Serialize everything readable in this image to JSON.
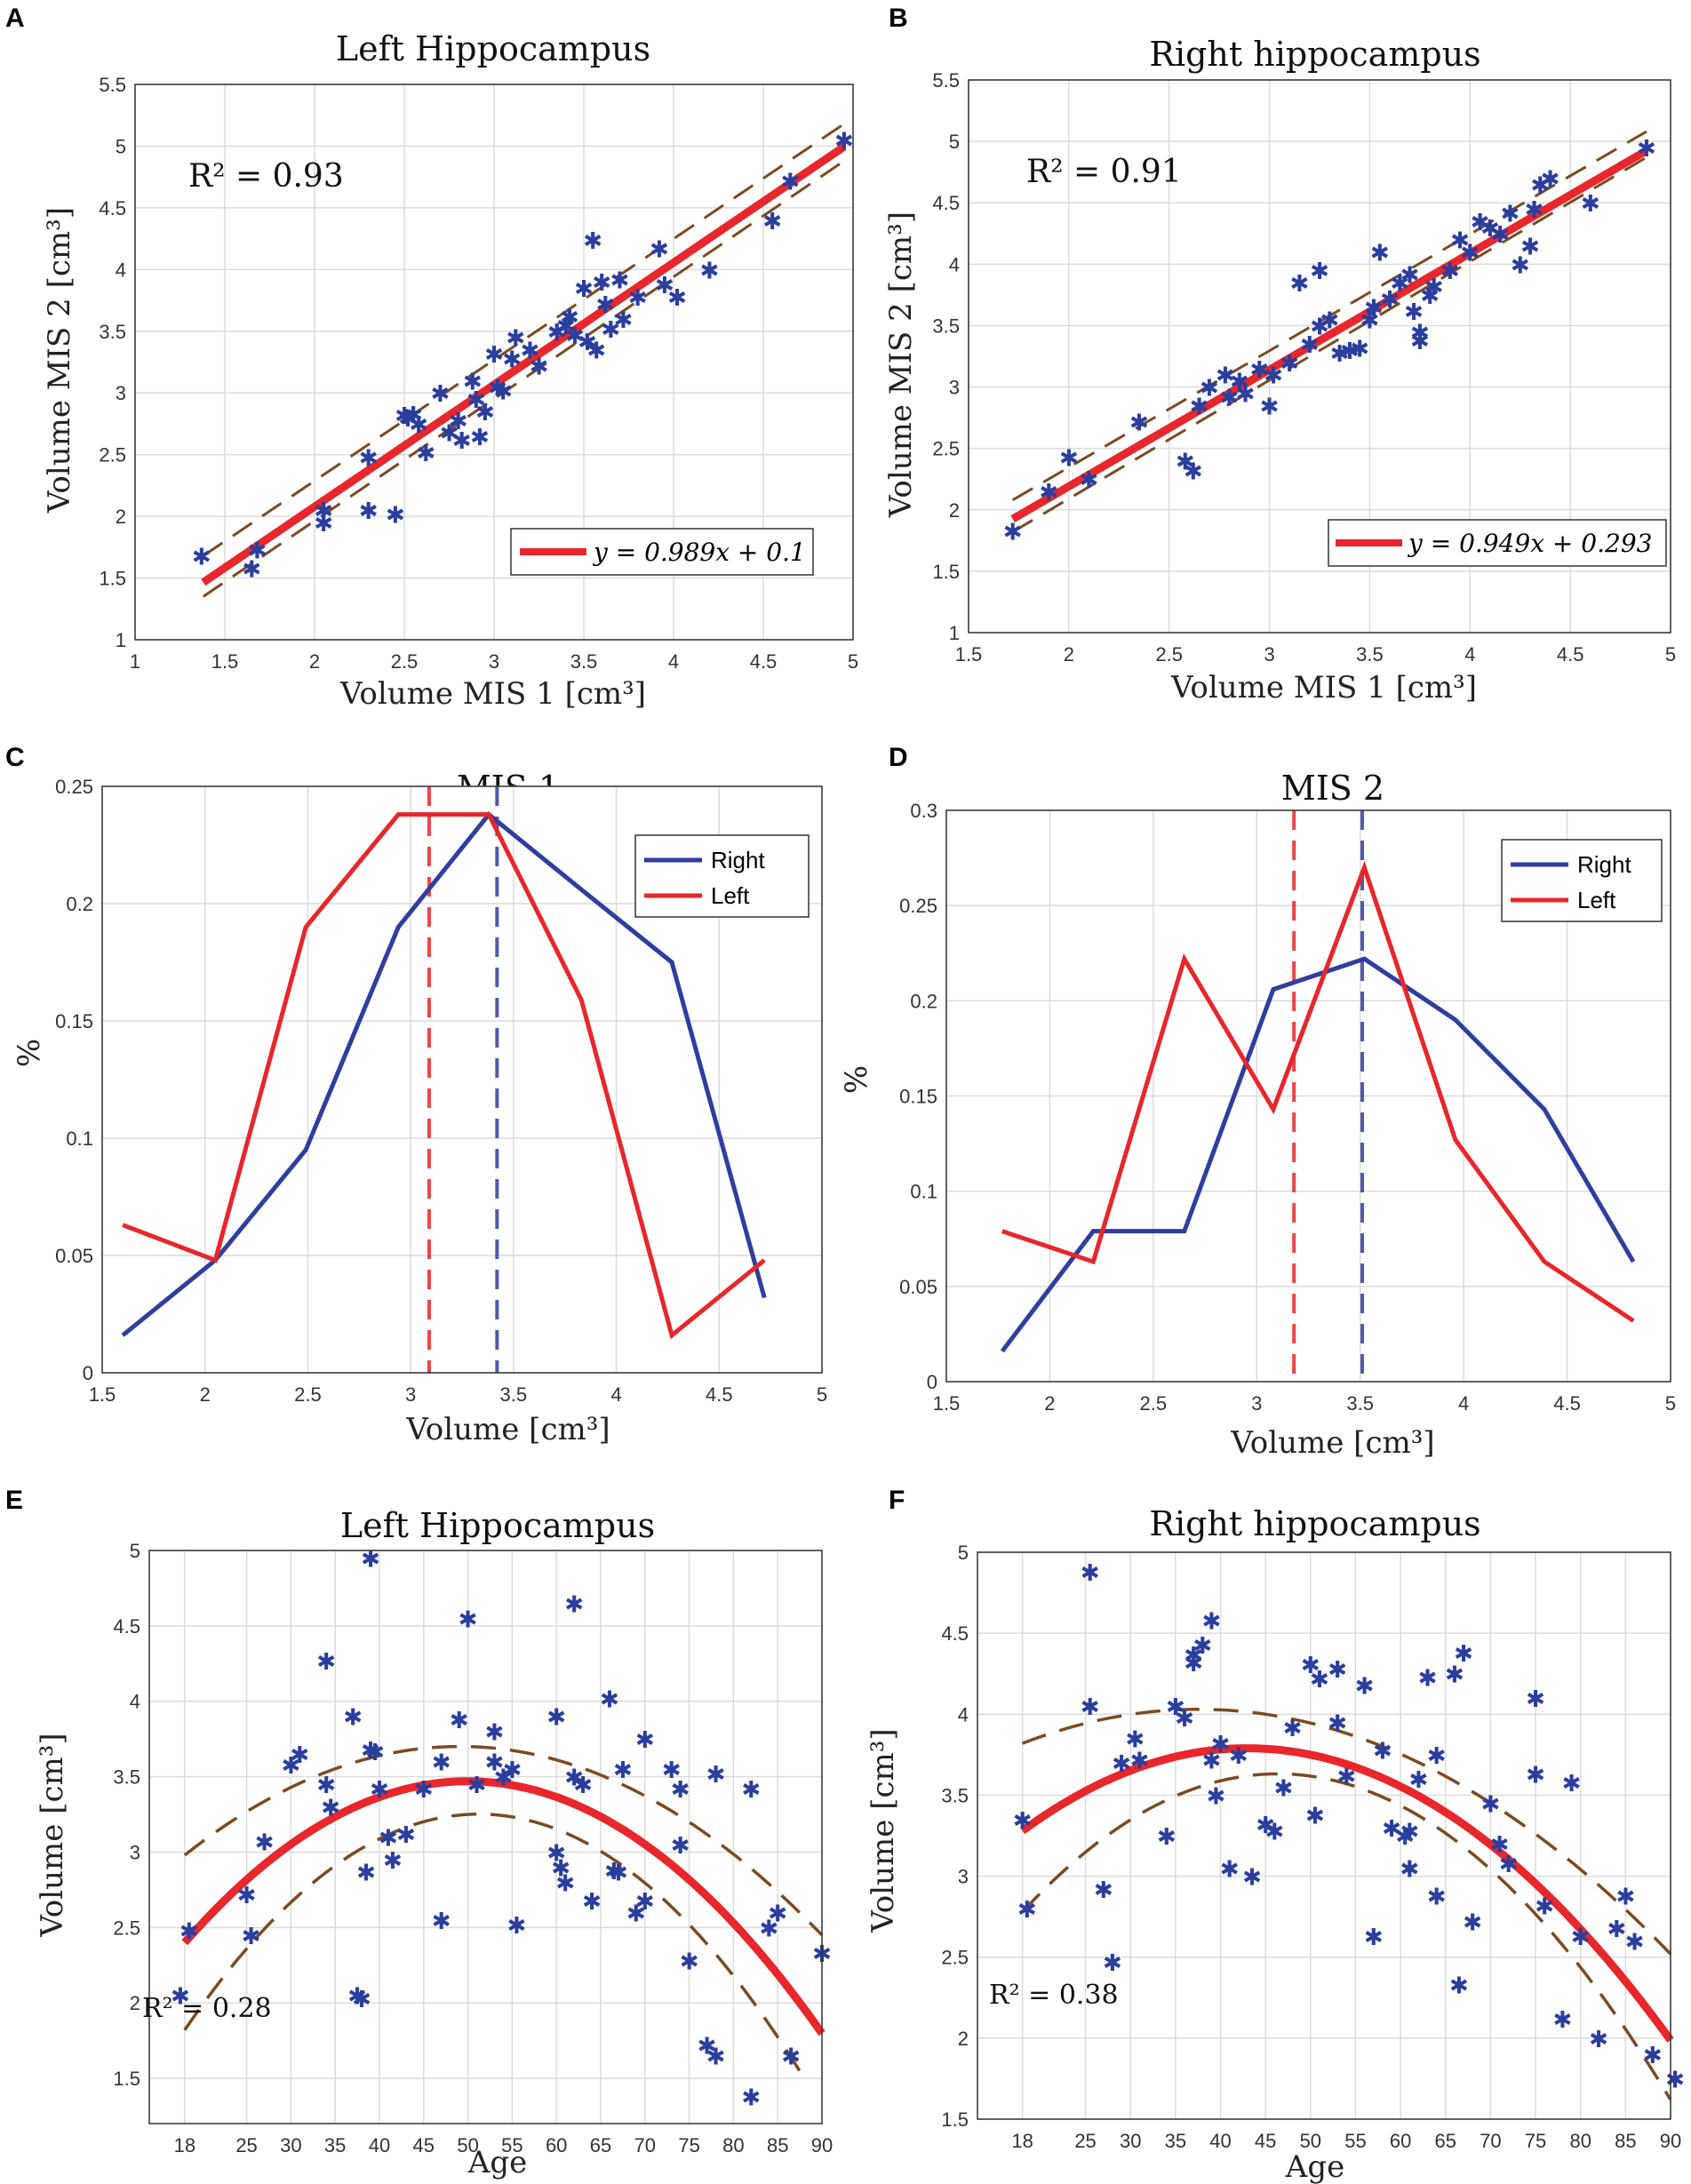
{
  "colors": {
    "right": "#2f3e9e",
    "left": "#e8262b",
    "brown": "#7b4a22",
    "marker": "#2a3e9e"
  },
  "chart_data": [
    {
      "panel": "A",
      "type": "scatter",
      "title": "Left Hippocampus",
      "xlabel": "Volume MIS 1 [cm³]",
      "ylabel": "Volume MIS 2 [cm³]",
      "xlim": [
        1,
        5
      ],
      "ylim": [
        1,
        5.5
      ],
      "xticks": [
        "1",
        "1.5",
        "2",
        "2.5",
        "3",
        "3.5",
        "4",
        "4.5",
        "5"
      ],
      "yticks": [
        "1",
        "1.5",
        "2",
        "2.5",
        "3",
        "3.5",
        "4",
        "4.5",
        "5",
        "5.5"
      ],
      "annotation": "R² = 0.93",
      "legend": "y = 0.989x + 0.1",
      "fit": {
        "slope": 0.989,
        "intercept": 0.1,
        "x_range": [
          1.38,
          4.95
        ]
      },
      "ci_band": {
        "lower_x": [
          1.38,
          4.95
        ],
        "lower_y": [
          1.35,
          4.88
        ],
        "upper_x": [
          1.38,
          4.95
        ],
        "upper_y": [
          1.68,
          5.18
        ]
      },
      "points": [
        [
          1.37,
          1.68
        ],
        [
          1.65,
          1.58
        ],
        [
          1.68,
          1.73
        ],
        [
          2.05,
          2.05
        ],
        [
          2.05,
          1.95
        ],
        [
          2.3,
          2.05
        ],
        [
          2.45,
          2.02
        ],
        [
          2.3,
          2.48
        ],
        [
          2.5,
          2.82
        ],
        [
          2.52,
          2.8
        ],
        [
          2.55,
          2.83
        ],
        [
          2.58,
          2.75
        ],
        [
          2.62,
          2.52
        ],
        [
          2.7,
          3.0
        ],
        [
          2.75,
          2.68
        ],
        [
          2.8,
          2.78
        ],
        [
          2.82,
          2.62
        ],
        [
          2.88,
          3.1
        ],
        [
          2.9,
          2.95
        ],
        [
          2.92,
          2.65
        ],
        [
          2.95,
          2.85
        ],
        [
          3.0,
          3.32
        ],
        [
          3.02,
          3.05
        ],
        [
          3.05,
          3.02
        ],
        [
          3.1,
          3.28
        ],
        [
          3.12,
          3.45
        ],
        [
          3.2,
          3.35
        ],
        [
          3.25,
          3.22
        ],
        [
          3.35,
          3.5
        ],
        [
          3.4,
          3.55
        ],
        [
          3.42,
          3.62
        ],
        [
          3.45,
          3.47
        ],
        [
          3.5,
          3.85
        ],
        [
          3.52,
          3.42
        ],
        [
          3.55,
          4.24
        ],
        [
          3.57,
          3.35
        ],
        [
          3.6,
          3.9
        ],
        [
          3.62,
          3.72
        ],
        [
          3.65,
          3.52
        ],
        [
          3.7,
          3.92
        ],
        [
          3.72,
          3.6
        ],
        [
          3.8,
          3.78
        ],
        [
          3.92,
          4.17
        ],
        [
          3.95,
          3.88
        ],
        [
          4.02,
          3.78
        ],
        [
          4.2,
          4.0
        ],
        [
          4.55,
          4.4
        ],
        [
          4.65,
          4.72
        ],
        [
          4.95,
          5.05
        ]
      ]
    },
    {
      "panel": "B",
      "type": "scatter",
      "title": "Right hippocampus",
      "xlabel": "Volume MIS 1 [cm³]",
      "ylabel": "Volume MIS 2 [cm³]",
      "xlim": [
        1.5,
        5
      ],
      "ylim": [
        1,
        5.5
      ],
      "xticks": [
        "1.5",
        "2",
        "2.5",
        "3",
        "3.5",
        "4",
        "4.5",
        "5"
      ],
      "yticks": [
        "1",
        "1.5",
        "2",
        "2.5",
        "3",
        "3.5",
        "4",
        "4.5",
        "5",
        "5.5"
      ],
      "annotation": "R² = 0.91",
      "legend": "y = 0.949x + 0.293",
      "fit": {
        "slope": 0.949,
        "intercept": 0.293,
        "x_range": [
          1.72,
          4.88
        ]
      },
      "ci_band": {
        "lower_x": [
          1.72,
          4.88
        ],
        "lower_y": [
          1.82,
          4.87
        ],
        "upper_x": [
          1.72,
          4.88
        ],
        "upper_y": [
          2.08,
          5.08
        ]
      },
      "points": [
        [
          1.72,
          1.83
        ],
        [
          1.9,
          2.15
        ],
        [
          2.0,
          2.43
        ],
        [
          2.1,
          2.25
        ],
        [
          2.35,
          2.72
        ],
        [
          2.58,
          2.4
        ],
        [
          2.62,
          2.32
        ],
        [
          2.65,
          2.85
        ],
        [
          2.7,
          3.0
        ],
        [
          2.78,
          3.1
        ],
        [
          2.8,
          2.92
        ],
        [
          2.85,
          3.05
        ],
        [
          2.88,
          2.95
        ],
        [
          2.95,
          3.15
        ],
        [
          3.0,
          2.85
        ],
        [
          3.02,
          3.1
        ],
        [
          3.1,
          3.2
        ],
        [
          3.15,
          3.85
        ],
        [
          3.2,
          3.35
        ],
        [
          3.25,
          3.5
        ],
        [
          3.25,
          3.95
        ],
        [
          3.3,
          3.55
        ],
        [
          3.35,
          3.28
        ],
        [
          3.4,
          3.3
        ],
        [
          3.45,
          3.32
        ],
        [
          3.5,
          3.55
        ],
        [
          3.52,
          3.65
        ],
        [
          3.55,
          4.1
        ],
        [
          3.6,
          3.72
        ],
        [
          3.65,
          3.85
        ],
        [
          3.7,
          3.92
        ],
        [
          3.72,
          3.62
        ],
        [
          3.75,
          3.45
        ],
        [
          3.75,
          3.38
        ],
        [
          3.8,
          3.75
        ],
        [
          3.82,
          3.82
        ],
        [
          3.9,
          3.95
        ],
        [
          3.95,
          4.2
        ],
        [
          4.0,
          4.1
        ],
        [
          4.05,
          4.35
        ],
        [
          4.1,
          4.3
        ],
        [
          4.15,
          4.25
        ],
        [
          4.2,
          4.42
        ],
        [
          4.25,
          4.0
        ],
        [
          4.3,
          4.15
        ],
        [
          4.32,
          4.45
        ],
        [
          4.35,
          4.65
        ],
        [
          4.4,
          4.7
        ],
        [
          4.6,
          4.5
        ],
        [
          4.88,
          4.95
        ]
      ]
    },
    {
      "panel": "C",
      "type": "line",
      "title": "MIS 1",
      "xlabel": "Volume [cm³]",
      "ylabel": "%",
      "xlim": [
        1.5,
        5
      ],
      "ylim": [
        0,
        0.25
      ],
      "xticks": [
        "1.5",
        "2",
        "2.5",
        "3",
        "3.5",
        "4",
        "4.5",
        "5"
      ],
      "yticks": [
        "0",
        "0.05",
        "0.1",
        "0.15",
        "0.2",
        "0.25"
      ],
      "legend": [
        "Right",
        "Left"
      ],
      "series": [
        {
          "name": "Right",
          "x": [
            1.6,
            2.05,
            2.49,
            2.94,
            3.38,
            3.83,
            4.27,
            4.72
          ],
          "values": [
            0.016,
            0.048,
            0.095,
            0.19,
            0.238,
            0.206,
            0.175,
            0.032
          ]
        },
        {
          "name": "Left",
          "x": [
            1.6,
            2.05,
            2.49,
            2.94,
            3.38,
            3.83,
            4.27,
            4.72
          ],
          "values": [
            0.063,
            0.048,
            0.19,
            0.238,
            0.238,
            0.159,
            0.016,
            0.048
          ]
        }
      ],
      "vlines": [
        {
          "name": "Left mean",
          "x": 3.09
        },
        {
          "name": "Right mean",
          "x": 3.42
        }
      ]
    },
    {
      "panel": "D",
      "type": "line",
      "title": "MIS 2",
      "xlabel": "Volume [cm³]",
      "ylabel": "%",
      "xlim": [
        1.5,
        5
      ],
      "ylim": [
        0,
        0.3
      ],
      "xticks": [
        "1.5",
        "2",
        "2.5",
        "3",
        "3.5",
        "4",
        "4.5",
        "5"
      ],
      "yticks": [
        "0",
        "0.05",
        "0.1",
        "0.15",
        "0.2",
        "0.25",
        "0.3"
      ],
      "legend": [
        "Right",
        "Left"
      ],
      "series": [
        {
          "name": "Right",
          "x": [
            1.77,
            2.21,
            2.65,
            3.08,
            3.52,
            3.96,
            4.39,
            4.82
          ],
          "values": [
            0.016,
            0.079,
            0.079,
            0.206,
            0.222,
            0.19,
            0.143,
            0.063
          ]
        },
        {
          "name": "Left",
          "x": [
            1.77,
            2.21,
            2.65,
            3.08,
            3.52,
            3.96,
            4.39,
            4.82
          ],
          "values": [
            0.079,
            0.063,
            0.222,
            0.143,
            0.27,
            0.127,
            0.063,
            0.032
          ]
        }
      ],
      "vlines": [
        {
          "name": "Left mean",
          "x": 3.18
        },
        {
          "name": "Right mean",
          "x": 3.51
        }
      ]
    },
    {
      "panel": "E",
      "type": "scatter",
      "title": "Left Hippocampus",
      "xlabel": "Age",
      "ylabel": "Volume [cm³]",
      "xlim": [
        14,
        90
      ],
      "ylim": [
        1.2,
        5
      ],
      "xticks": [
        "18",
        "25",
        "30",
        "35",
        "40",
        "45",
        "50",
        "55",
        "60",
        "65",
        "70",
        "75",
        "80",
        "85",
        "90"
      ],
      "yticks": [
        "1.5",
        "2",
        "2.5",
        "3",
        "3.5",
        "4",
        "4.5",
        "5"
      ],
      "annotation": "R² = 0.28",
      "fit": {
        "type": "quadratic",
        "vertex_x": 50,
        "vertex_y": 3.47,
        "at_18": 2.4,
        "at_90": 1.88
      },
      "ci_band": {
        "lower": [
          [
            18,
            1.82
          ],
          [
            50,
            3.25
          ],
          [
            88,
            1.5
          ]
        ],
        "upper": [
          [
            18,
            2.98
          ],
          [
            50,
            3.7
          ],
          [
            90,
            2.45
          ]
        ]
      },
      "points": [
        [
          17.5,
          2.05
        ],
        [
          18.5,
          2.48
        ],
        [
          25,
          2.72
        ],
        [
          25.5,
          2.45
        ],
        [
          27,
          3.07
        ],
        [
          30,
          3.58
        ],
        [
          31,
          3.65
        ],
        [
          34,
          4.27
        ],
        [
          34.5,
          3.3
        ],
        [
          34,
          3.45
        ],
        [
          37,
          3.9
        ],
        [
          37.5,
          2.05
        ],
        [
          38,
          2.03
        ],
        [
          38.5,
          2.87
        ],
        [
          39,
          4.95
        ],
        [
          39,
          3.68
        ],
        [
          39.5,
          3.67
        ],
        [
          40,
          3.42
        ],
        [
          41,
          3.1
        ],
        [
          41.5,
          2.95
        ],
        [
          43,
          3.12
        ],
        [
          45,
          3.42
        ],
        [
          47,
          3.6
        ],
        [
          47,
          2.55
        ],
        [
          49,
          3.88
        ],
        [
          50,
          4.55
        ],
        [
          51,
          3.45
        ],
        [
          53,
          3.8
        ],
        [
          53,
          3.6
        ],
        [
          54,
          3.5
        ],
        [
          55,
          3.55
        ],
        [
          55.5,
          2.52
        ],
        [
          60,
          3.9
        ],
        [
          60,
          3.0
        ],
        [
          60.5,
          2.9
        ],
        [
          61,
          2.8
        ],
        [
          62,
          4.65
        ],
        [
          62,
          3.5
        ],
        [
          63,
          3.45
        ],
        [
          64,
          2.68
        ],
        [
          66,
          4.02
        ],
        [
          66.5,
          2.88
        ],
        [
          67.5,
          3.55
        ],
        [
          67,
          2.87
        ],
        [
          69,
          2.6
        ],
        [
          70,
          3.75
        ],
        [
          70,
          2.68
        ],
        [
          73,
          3.55
        ],
        [
          74,
          3.42
        ],
        [
          74,
          3.05
        ],
        [
          75,
          2.28
        ],
        [
          77,
          1.72
        ],
        [
          78,
          3.52
        ],
        [
          78,
          1.65
        ],
        [
          82,
          3.42
        ],
        [
          82,
          1.38
        ],
        [
          84,
          2.5
        ],
        [
          85,
          2.6
        ],
        [
          86.5,
          1.65
        ],
        [
          90,
          2.33
        ]
      ]
    },
    {
      "panel": "F",
      "type": "scatter",
      "title": "Right hippocampus",
      "xlabel": "Age",
      "ylabel": "Volume [cm³]",
      "xlim": [
        13,
        90
      ],
      "ylim": [
        1.5,
        5
      ],
      "xticks": [
        "18",
        "25",
        "30",
        "35",
        "40",
        "45",
        "50",
        "55",
        "60",
        "65",
        "70",
        "75",
        "80",
        "85",
        "90"
      ],
      "yticks": [
        "1.5",
        "2",
        "2.5",
        "3",
        "3.5",
        "4",
        "4.5",
        "5"
      ],
      "annotation": "R² = 0.38",
      "fit": {
        "type": "quadratic",
        "vertex_x": 43,
        "vertex_y": 3.79,
        "at_18": 3.28,
        "at_90": 2.05
      },
      "ci_band": {
        "lower": [
          [
            18,
            2.78
          ],
          [
            43,
            3.62
          ],
          [
            90,
            1.62
          ]
        ],
        "upper": [
          [
            18,
            3.82
          ],
          [
            45,
            4.0
          ],
          [
            90,
            2.52
          ]
        ]
      },
      "points": [
        [
          18,
          3.35
        ],
        [
          18.5,
          2.8
        ],
        [
          25.5,
          4.88
        ],
        [
          25.5,
          4.05
        ],
        [
          27,
          2.92
        ],
        [
          28,
          2.47
        ],
        [
          29,
          3.7
        ],
        [
          30.5,
          3.85
        ],
        [
          31,
          3.72
        ],
        [
          34,
          3.25
        ],
        [
          35,
          4.05
        ],
        [
          36,
          3.98
        ],
        [
          37,
          4.32
        ],
        [
          37,
          4.37
        ],
        [
          38,
          4.43
        ],
        [
          39,
          4.58
        ],
        [
          39,
          3.72
        ],
        [
          39.5,
          3.5
        ],
        [
          40,
          3.82
        ],
        [
          41,
          3.05
        ],
        [
          42,
          3.75
        ],
        [
          43.5,
          3.0
        ],
        [
          45,
          3.32
        ],
        [
          46,
          3.28
        ],
        [
          47,
          3.55
        ],
        [
          48,
          3.92
        ],
        [
          50,
          4.31
        ],
        [
          50.5,
          3.38
        ],
        [
          51,
          4.22
        ],
        [
          53,
          4.28
        ],
        [
          53,
          3.95
        ],
        [
          54,
          3.62
        ],
        [
          56,
          4.18
        ],
        [
          57,
          2.63
        ],
        [
          58,
          3.78
        ],
        [
          59,
          3.3
        ],
        [
          60.5,
          3.25
        ],
        [
          61,
          3.05
        ],
        [
          61,
          3.28
        ],
        [
          62,
          3.6
        ],
        [
          63,
          4.23
        ],
        [
          64,
          3.75
        ],
        [
          64,
          2.88
        ],
        [
          66,
          4.25
        ],
        [
          66.5,
          2.33
        ],
        [
          67,
          4.38
        ],
        [
          68,
          2.72
        ],
        [
          70,
          3.45
        ],
        [
          71,
          3.2
        ],
        [
          72,
          3.08
        ],
        [
          75,
          4.1
        ],
        [
          75,
          3.63
        ],
        [
          76,
          2.82
        ],
        [
          78,
          2.12
        ],
        [
          79,
          3.58
        ],
        [
          80,
          2.63
        ],
        [
          82,
          2.0
        ],
        [
          84,
          2.68
        ],
        [
          85,
          2.88
        ],
        [
          86,
          2.6
        ],
        [
          88,
          1.9
        ],
        [
          90.5,
          1.75
        ]
      ]
    }
  ]
}
